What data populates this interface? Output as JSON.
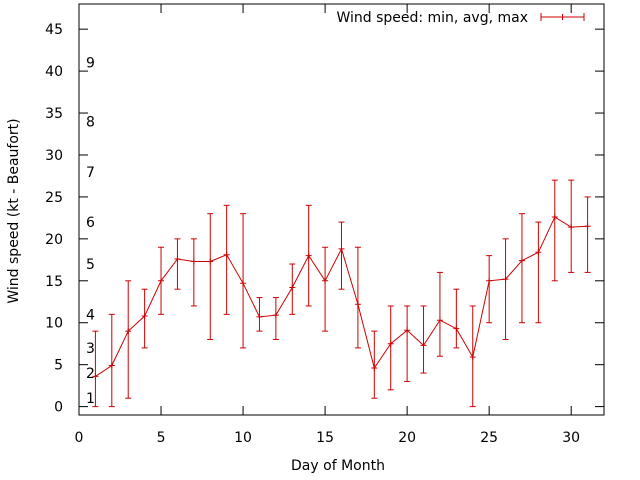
{
  "chart_data": {
    "type": "line",
    "title": "",
    "xlabel": "Day of Month",
    "ylabel": "Wind speed (kt - Beaufort)",
    "xlim": [
      0,
      32
    ],
    "ylim": [
      -1,
      48
    ],
    "xticks": [
      0,
      5,
      10,
      15,
      20,
      25,
      30
    ],
    "yticks": [
      0,
      5,
      10,
      15,
      20,
      25,
      30,
      35,
      40,
      45
    ],
    "beaufort_labels": [
      {
        "label": "1",
        "y": 1
      },
      {
        "label": "2",
        "y": 4
      },
      {
        "label": "3",
        "y": 7
      },
      {
        "label": "4",
        "y": 11
      },
      {
        "label": "5",
        "y": 17
      },
      {
        "label": "6",
        "y": 22
      },
      {
        "label": "7",
        "y": 28
      },
      {
        "label": "8",
        "y": 34
      },
      {
        "label": "9",
        "y": 41
      }
    ],
    "legend": "Wind speed: min, avg, max",
    "legend_position": "top-right",
    "color": "#cc0000",
    "series": [
      {
        "name": "Wind speed: min, avg, max",
        "x": [
          1,
          2,
          3,
          4,
          5,
          6,
          7,
          8,
          9,
          10,
          11,
          12,
          13,
          14,
          15,
          16,
          17,
          18,
          19,
          20,
          21,
          22,
          23,
          24,
          25,
          26,
          27,
          28,
          29,
          30,
          31
        ],
        "avg": [
          3.6,
          4.9,
          9,
          10.8,
          15,
          17.6,
          17.3,
          17.3,
          18.1,
          14.7,
          10.7,
          10.9,
          14.2,
          18,
          15,
          18.8,
          12.2,
          4.6,
          7.5,
          9.1,
          7.3,
          10.3,
          9.3,
          5.9,
          15,
          15.2,
          17.4,
          18.4,
          22.6,
          21.4,
          21.5
        ],
        "min": [
          0,
          0,
          1,
          7,
          11,
          14,
          12,
          8,
          11,
          7,
          9,
          8,
          11,
          12,
          9,
          14,
          7,
          1,
          2,
          3,
          4,
          6,
          7,
          0,
          10,
          8,
          10,
          10,
          15,
          16,
          16
        ],
        "max": [
          9,
          11,
          15,
          14,
          19,
          20,
          20,
          23,
          24,
          23,
          13,
          13,
          17,
          24,
          19,
          22,
          19,
          9,
          12,
          12,
          12,
          16,
          14,
          12,
          18,
          20,
          23,
          22,
          27,
          27,
          25
        ]
      }
    ]
  }
}
